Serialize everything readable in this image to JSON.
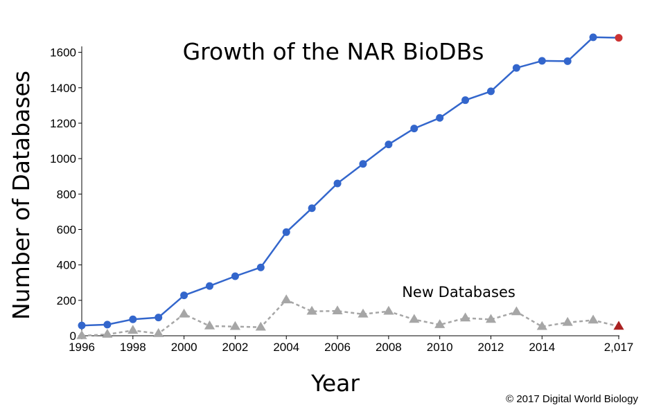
{
  "chart_data": {
    "type": "line",
    "title": "Growth of the NAR BioDBs",
    "xlabel": "Year",
    "ylabel": "Number of Databases",
    "xlim": [
      1996,
      2017
    ],
    "ylim": [
      0,
      1700
    ],
    "x_ticks": [
      "1996",
      "1998",
      "2000",
      "2002",
      "2004",
      "2006",
      "2008",
      "2010",
      "2012",
      "2014",
      "2,017"
    ],
    "y_ticks": [
      "0",
      "200",
      "400",
      "600",
      "800",
      "1000",
      "1200",
      "1400",
      "1600"
    ],
    "x": [
      1996,
      1997,
      1998,
      1999,
      2000,
      2001,
      2002,
      2003,
      2004,
      2005,
      2006,
      2007,
      2008,
      2009,
      2010,
      2011,
      2012,
      2013,
      2014,
      2015,
      2016,
      2017
    ],
    "series": [
      {
        "values": [
          58,
          63,
          93,
          103,
          228,
          281,
          336,
          386,
          585,
          720,
          860,
          970,
          1080,
          1170,
          1230,
          1330,
          1380,
          1512,
          1552,
          1550,
          1685,
          1682
        ],
        "color": "#3366cc",
        "last_point_color": "#cc3333",
        "marker": "circle",
        "line_style": "solid"
      },
      {
        "name": "New Databases",
        "values": [
          0,
          8,
          30,
          12,
          122,
          55,
          52,
          48,
          202,
          138,
          140,
          122,
          138,
          92,
          62,
          100,
          92,
          135,
          52,
          75,
          88,
          53
        ],
        "color": "#a6a6a6",
        "last_point_color": "#aa2222",
        "marker": "triangle",
        "line_style": "dashed"
      }
    ],
    "annotations": [
      "New Databases"
    ],
    "grid": false,
    "legend": "none"
  },
  "credit": "© 2017 Digital World Biology"
}
